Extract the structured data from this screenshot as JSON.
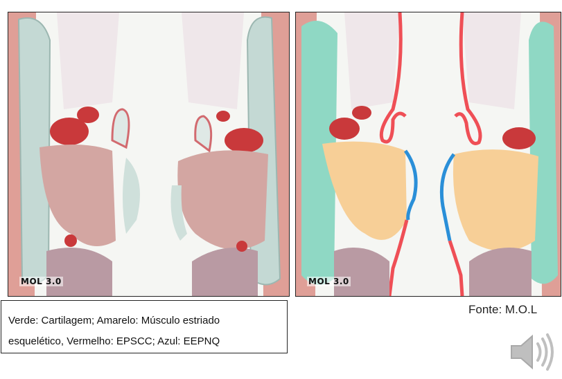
{
  "panels": {
    "left": {
      "watermark": "MOL 3.0"
    },
    "right": {
      "watermark": "MOL 3.0"
    }
  },
  "caption": {
    "line1": "Verde: Cartilagem; Amarelo: Músculo estriado",
    "line2": "esquelético, Vermelho: EPSCC; Azul: EEPNQ"
  },
  "source": "Fonte: M.O.L",
  "colors": {
    "green": "#8fd8c4",
    "yellow": "#f7cf97",
    "red": "#ef4f56",
    "blue": "#2a8fd8",
    "tissue_pink": "#d7a9a4",
    "muscle_red": "#c9393b",
    "cartilage_gray": "#c8dcd8"
  },
  "icons": {
    "audio": "speaker-icon"
  }
}
